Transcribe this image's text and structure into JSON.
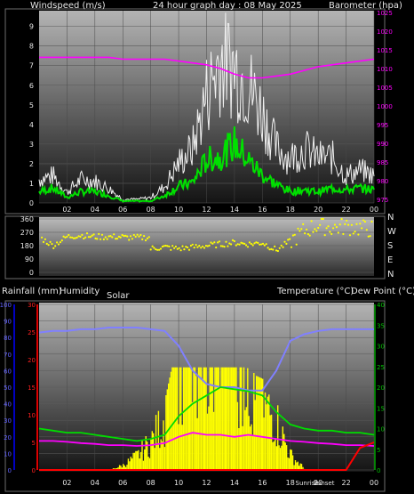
{
  "header": {
    "wind_label": "Windspeed (m/s)",
    "title": "24 hour graph day : 08 May 2025",
    "baro_label": "Barometer (hpa)"
  },
  "mid_header": {
    "rain_label": "Rainfall (mm)",
    "humidity_label": "Humidity",
    "solar_label": "Solar",
    "temp_label": "Temperature (°C)",
    "dew_label": "Dew Point (°C)"
  },
  "colors": {
    "gust": "#f0f0f0",
    "wind": "#00e000",
    "pressure": "#ff00ff",
    "direction": "#ffff00",
    "humidity": "#8080ff",
    "temperature": "#00dd00",
    "dewpoint": "#ff00ff",
    "solar": "#ffff00",
    "rain": "#ff0000",
    "rain_axis": "#0000c0",
    "humidity_axis": "#dd0000",
    "temp_axis": "#00a000"
  },
  "chart_data": [
    {
      "type": "line",
      "name": "wind",
      "xlim": [
        0,
        24
      ],
      "x_ticks": [
        "02",
        "04",
        "06",
        "08",
        "10",
        "12",
        "14",
        "16",
        "18",
        "20",
        "22",
        "00"
      ],
      "y_left_ticks": [
        0,
        1,
        2,
        3,
        4,
        5,
        6,
        7,
        8,
        9
      ],
      "y_left_lim": [
        0,
        9.8
      ],
      "y_right_ticks": [
        975,
        980,
        985,
        990,
        995,
        1000,
        1005,
        1010,
        1015,
        1020,
        1025
      ],
      "y_right_lim": [
        974,
        1025.5
      ],
      "x": [
        0,
        1,
        2,
        3,
        4,
        5,
        6,
        7,
        8,
        9,
        10,
        11,
        12,
        13,
        14,
        15,
        16,
        17,
        18,
        19,
        20,
        21,
        22,
        23,
        24
      ],
      "gust": [
        1.3,
        1.5,
        0.6,
        1.3,
        1.2,
        0.8,
        0.2,
        0.2,
        0.3,
        0.9,
        2.2,
        3.0,
        6.0,
        8.0,
        7.5,
        6.5,
        5.0,
        3.0,
        2.5,
        3.0,
        2.5,
        2.5,
        1.5,
        1.8,
        1.5
      ],
      "wind_avg": [
        0.6,
        0.8,
        0.3,
        0.6,
        0.6,
        0.4,
        0.1,
        0.1,
        0.1,
        0.4,
        0.9,
        1.1,
        2.3,
        2.5,
        3.2,
        2.3,
        1.5,
        1.0,
        0.6,
        0.7,
        0.6,
        0.8,
        0.7,
        0.8,
        0.7
      ],
      "pressure": [
        1013,
        1013,
        1013,
        1013,
        1013,
        1013,
        1012.5,
        1012.5,
        1012.5,
        1012.5,
        1012,
        1011.5,
        1011,
        1010,
        1008.5,
        1007.5,
        1007.5,
        1008,
        1008.5,
        1009.5,
        1010.5,
        1011,
        1011.5,
        1012,
        1012.5
      ]
    },
    {
      "type": "scatter",
      "name": "direction",
      "y_left_ticks": [
        "360",
        "270",
        "180",
        "90",
        "0"
      ],
      "y_right_ticks": [
        "N",
        "W",
        "S",
        "E",
        "N"
      ],
      "ylim": [
        0,
        360
      ],
      "x": [
        0,
        1,
        2,
        3,
        4,
        5,
        6,
        7,
        8,
        9,
        10,
        11,
        12,
        13,
        14,
        15,
        16,
        17,
        18,
        19,
        20,
        21,
        22,
        23,
        24
      ],
      "dir": [
        240,
        180,
        240,
        250,
        240,
        240,
        240,
        240,
        160,
        170,
        160,
        170,
        180,
        190,
        200,
        190,
        200,
        150,
        210,
        280,
        320,
        300,
        310,
        300,
        290
      ]
    },
    {
      "type": "line",
      "name": "climate",
      "y_rain_ticks": [
        0,
        10,
        20,
        30,
        40,
        50,
        60,
        70,
        80,
        90,
        100
      ],
      "y_rain_lim": [
        0,
        100
      ],
      "y_hum_ticks": [
        0,
        5,
        10,
        15,
        20,
        25,
        30
      ],
      "y_hum_lim": [
        0,
        30
      ],
      "y_temp_ticks": [
        0,
        5,
        10,
        15,
        20,
        25,
        30,
        35,
        40
      ],
      "y_temp_lim": [
        0,
        40
      ],
      "x_ticks": [
        "02",
        "04",
        "06",
        "08",
        "10",
        "12",
        "14",
        "16",
        "18",
        "20",
        "22",
        "00"
      ],
      "x_extra_labels": [
        "Sunrise",
        "Sunset"
      ],
      "x": [
        0,
        1,
        2,
        3,
        4,
        5,
        6,
        7,
        8,
        9,
        10,
        11,
        12,
        13,
        14,
        15,
        16,
        17,
        18,
        19,
        20,
        21,
        22,
        23,
        24
      ],
      "humidity": [
        83,
        84,
        84,
        85,
        85,
        86,
        86,
        86,
        85,
        84,
        75,
        60,
        52,
        50,
        50,
        48,
        48,
        60,
        78,
        82,
        84,
        85,
        85,
        85,
        85
      ],
      "temperature": [
        10,
        9.5,
        9,
        9,
        8.5,
        8,
        7.5,
        7,
        7.5,
        8.5,
        13,
        16,
        18,
        20,
        19.5,
        19,
        18,
        14,
        11,
        10,
        9.5,
        9.5,
        9,
        9,
        8.5
      ],
      "dewpoint": [
        7,
        7,
        6.8,
        6.5,
        6.3,
        6,
        6,
        5.8,
        6,
        6.5,
        8,
        9,
        8.5,
        8.5,
        8,
        8.5,
        8,
        7.5,
        7,
        6.8,
        6.5,
        6.3,
        6,
        6,
        5.8
      ],
      "solar": [
        0,
        0,
        0,
        0,
        0,
        0,
        20,
        60,
        120,
        220,
        420,
        420,
        390,
        500,
        430,
        300,
        280,
        200,
        60,
        5,
        0,
        0,
        0,
        0,
        0
      ],
      "rain": [
        0,
        0,
        0,
        0,
        0,
        0,
        0,
        0,
        0,
        0,
        0,
        0,
        0,
        0,
        0,
        0,
        0,
        0,
        0,
        0,
        0,
        0,
        0,
        0,
        5
      ]
    }
  ]
}
